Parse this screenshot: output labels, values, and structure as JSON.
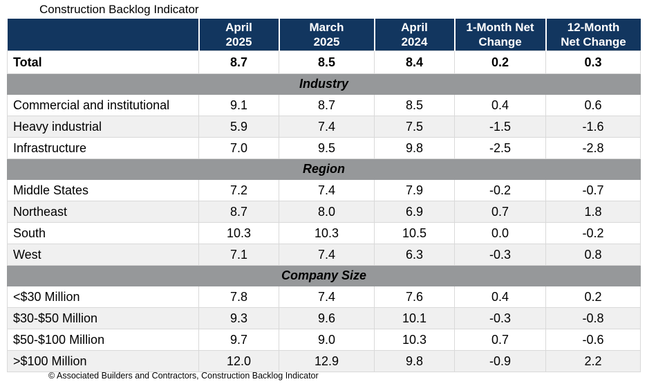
{
  "title": "Construction Backlog Indicator",
  "footer": "© Associated Builders and Contractors, Construction Backlog Indicator",
  "colors": {
    "header_bg": "#12365F",
    "header_text": "#ffffff",
    "section_band_bg": "#96989A",
    "alt_row_bg": "#F0F0F0",
    "grid_border": "#D9D9D9",
    "text": "#000000"
  },
  "header": {
    "columns": [
      {
        "line1": "April",
        "line2": "2025"
      },
      {
        "line1": "March",
        "line2": "2025"
      },
      {
        "line1": "April",
        "line2": "2024"
      },
      {
        "line1": "1-Month Net",
        "line2": "Change"
      },
      {
        "line1": "12-Month",
        "line2": "Net Change"
      }
    ]
  },
  "chart_data": {
    "type": "table",
    "title": "Construction Backlog Indicator",
    "columns": [
      "",
      "April 2025",
      "March 2025",
      "April 2024",
      "1-Month Net Change",
      "12-Month Net Change"
    ],
    "total": {
      "label": "Total",
      "values": [
        "8.7",
        "8.5",
        "8.4",
        "0.2",
        "0.3"
      ]
    },
    "sections": [
      {
        "name": "Industry",
        "rows": [
          {
            "label": "Commercial and institutional",
            "values": [
              "9.1",
              "8.7",
              "8.5",
              "0.4",
              "0.6"
            ]
          },
          {
            "label": "Heavy industrial",
            "values": [
              "5.9",
              "7.4",
              "7.5",
              "-1.5",
              "-1.6"
            ]
          },
          {
            "label": "Infrastructure",
            "values": [
              "7.0",
              "9.5",
              "9.8",
              "-2.5",
              "-2.8"
            ]
          }
        ]
      },
      {
        "name": "Region",
        "rows": [
          {
            "label": "Middle States",
            "values": [
              "7.2",
              "7.4",
              "7.9",
              "-0.2",
              "-0.7"
            ]
          },
          {
            "label": "Northeast",
            "values": [
              "8.7",
              "8.0",
              "6.9",
              "0.7",
              "1.8"
            ]
          },
          {
            "label": "South",
            "values": [
              "10.3",
              "10.3",
              "10.5",
              "0.0",
              "-0.2"
            ]
          },
          {
            "label": "West",
            "values": [
              "7.1",
              "7.4",
              "6.3",
              "-0.3",
              "0.8"
            ]
          }
        ]
      },
      {
        "name": "Company Size",
        "rows": [
          {
            "label": "<$30 Million",
            "values": [
              "7.8",
              "7.4",
              "7.6",
              "0.4",
              "0.2"
            ]
          },
          {
            "label": "$30-$50 Million",
            "values": [
              "9.3",
              "9.6",
              "10.1",
              "-0.3",
              "-0.8"
            ]
          },
          {
            "label": "$50-$100 Million",
            "values": [
              "9.7",
              "9.0",
              "10.3",
              "0.7",
              "-0.6"
            ]
          },
          {
            "label": ">$100 Million",
            "values": [
              "12.0",
              "12.9",
              "9.8",
              "-0.9",
              "2.2"
            ]
          }
        ]
      }
    ]
  }
}
